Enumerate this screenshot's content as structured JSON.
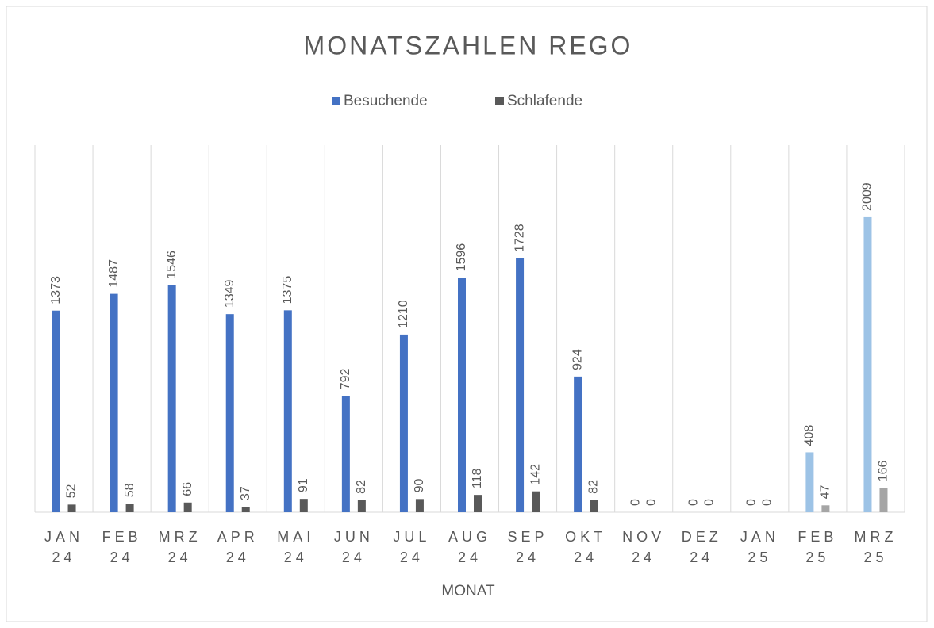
{
  "chart_data": {
    "type": "bar",
    "title": "MONATSZAHLEN REGO",
    "x_label": "MONAT",
    "categories": [
      "JAN 24",
      "FEB 24",
      "MRZ 24",
      "APR 24",
      "MAI 24",
      "JUN 24",
      "JUL 24",
      "AUG 24",
      "SEP 24",
      "OKT 24",
      "NOV 24",
      "DEZ 24",
      "JAN 25",
      "FEB 25",
      "MRZ 25"
    ],
    "series": [
      {
        "name": "Besuchende",
        "color": "#4472c4",
        "point_colors": [
          "#4472c4",
          "#4472c4",
          "#4472c4",
          "#4472c4",
          "#4472c4",
          "#4472c4",
          "#4472c4",
          "#4472c4",
          "#4472c4",
          "#4472c4",
          "#4472c4",
          "#4472c4",
          "#4472c4",
          "#9dc3e6",
          "#9dc3e6"
        ],
        "values": [
          1373,
          1487,
          1546,
          1349,
          1375,
          792,
          1210,
          1596,
          1728,
          924,
          0,
          0,
          0,
          408,
          2009
        ]
      },
      {
        "name": "Schlafende",
        "color": "#595959",
        "point_colors": [
          "#595959",
          "#595959",
          "#595959",
          "#595959",
          "#595959",
          "#595959",
          "#595959",
          "#595959",
          "#595959",
          "#595959",
          "#595959",
          "#595959",
          "#595959",
          "#a5a5a5",
          "#a5a5a5"
        ],
        "values": [
          52,
          58,
          66,
          37,
          91,
          82,
          90,
          118,
          142,
          82,
          0,
          0,
          0,
          47,
          166
        ]
      }
    ],
    "ylim": [
      0,
      2500
    ],
    "legend": "top"
  }
}
